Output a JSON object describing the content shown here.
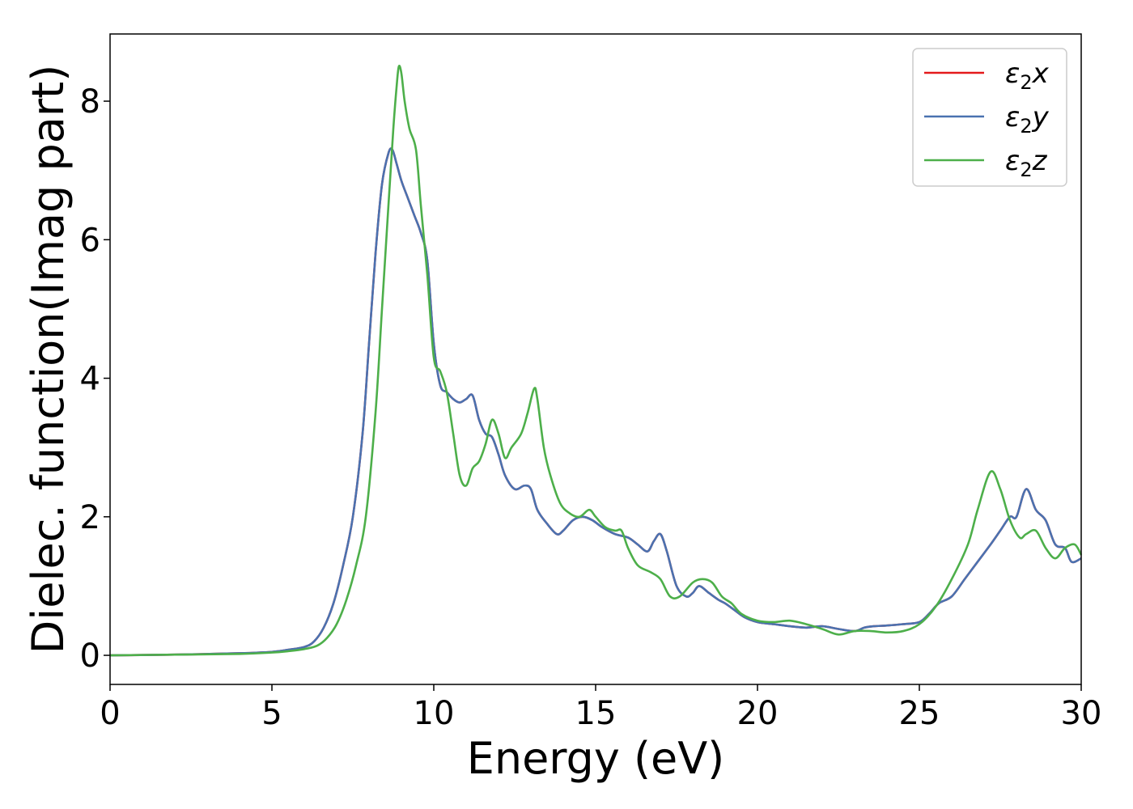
{
  "chart_data": {
    "type": "line",
    "xlabel": "Energy (eV)",
    "ylabel": "Dielec. function(Imag part)",
    "xlim": [
      0,
      30
    ],
    "ylim": [
      -0.42,
      8.97
    ],
    "xticks": [
      "0",
      "5",
      "10",
      "15",
      "20",
      "25",
      "30"
    ],
    "yticks": [
      "0",
      "2",
      "4",
      "6",
      "8"
    ],
    "grid": false,
    "legend_position": "top-right",
    "series": [
      {
        "name": "ε₂x",
        "legend_main": "ε",
        "legend_sub": "2",
        "legend_suffix": "x",
        "color": "#e41a1c",
        "x": [
          0,
          2,
          4,
          5,
          5.5,
          6,
          6.3,
          6.6,
          6.9,
          7.2,
          7.5,
          7.8,
          8.0,
          8.2,
          8.4,
          8.6,
          8.72,
          8.85,
          9.0,
          9.2,
          9.4,
          9.6,
          9.8,
          10.0,
          10.2,
          10.4,
          10.6,
          10.8,
          11.0,
          11.2,
          11.4,
          11.6,
          11.8,
          12.0,
          12.2,
          12.5,
          12.8,
          13.0,
          13.2,
          13.5,
          13.8,
          14.0,
          14.3,
          14.6,
          14.9,
          15.2,
          15.6,
          16.0,
          16.3,
          16.6,
          16.8,
          17.0,
          17.2,
          17.5,
          17.8,
          18.0,
          18.2,
          18.5,
          18.8,
          19.0,
          19.3,
          19.6,
          20.0,
          20.5,
          21.0,
          21.5,
          22.0,
          22.5,
          23.0,
          23.3,
          23.6,
          24.0,
          24.5,
          25.0,
          25.3,
          25.6,
          26.0,
          26.4,
          26.8,
          27.2,
          27.5,
          27.8,
          28.0,
          28.3,
          28.6,
          28.9,
          29.2,
          29.5,
          29.7,
          30.0
        ],
        "y": [
          0.0,
          0.01,
          0.03,
          0.05,
          0.08,
          0.12,
          0.2,
          0.4,
          0.75,
          1.3,
          2.0,
          3.2,
          4.5,
          5.8,
          6.8,
          7.25,
          7.3,
          7.1,
          6.85,
          6.6,
          6.35,
          6.1,
          5.7,
          4.5,
          3.9,
          3.8,
          3.7,
          3.65,
          3.7,
          3.75,
          3.4,
          3.2,
          3.15,
          2.9,
          2.6,
          2.4,
          2.45,
          2.4,
          2.1,
          1.9,
          1.75,
          1.8,
          1.95,
          2.0,
          1.95,
          1.85,
          1.75,
          1.7,
          1.6,
          1.5,
          1.65,
          1.75,
          1.5,
          1.0,
          0.85,
          0.9,
          1.0,
          0.9,
          0.8,
          0.75,
          0.65,
          0.55,
          0.48,
          0.45,
          0.42,
          0.4,
          0.42,
          0.38,
          0.35,
          0.4,
          0.42,
          0.43,
          0.45,
          0.48,
          0.6,
          0.75,
          0.85,
          1.1,
          1.35,
          1.6,
          1.8,
          2.0,
          2.0,
          2.4,
          2.1,
          1.95,
          1.6,
          1.55,
          1.35,
          1.4
        ]
      },
      {
        "name": "ε₂y",
        "legend_main": "ε",
        "legend_sub": "2",
        "legend_suffix": "y",
        "color": "#4a72b0",
        "x": [
          0,
          2,
          4,
          5,
          5.5,
          6,
          6.3,
          6.6,
          6.9,
          7.2,
          7.5,
          7.8,
          8.0,
          8.2,
          8.4,
          8.6,
          8.72,
          8.85,
          9.0,
          9.2,
          9.4,
          9.6,
          9.8,
          10.0,
          10.2,
          10.4,
          10.6,
          10.8,
          11.0,
          11.2,
          11.4,
          11.6,
          11.8,
          12.0,
          12.2,
          12.5,
          12.8,
          13.0,
          13.2,
          13.5,
          13.8,
          14.0,
          14.3,
          14.6,
          14.9,
          15.2,
          15.6,
          16.0,
          16.3,
          16.6,
          16.8,
          17.0,
          17.2,
          17.5,
          17.8,
          18.0,
          18.2,
          18.5,
          18.8,
          19.0,
          19.3,
          19.6,
          20.0,
          20.5,
          21.0,
          21.5,
          22.0,
          22.5,
          23.0,
          23.3,
          23.6,
          24.0,
          24.5,
          25.0,
          25.3,
          25.6,
          26.0,
          26.4,
          26.8,
          27.2,
          27.5,
          27.8,
          28.0,
          28.3,
          28.6,
          28.9,
          29.2,
          29.5,
          29.7,
          30.0
        ],
        "y": [
          0.0,
          0.01,
          0.03,
          0.05,
          0.08,
          0.12,
          0.2,
          0.4,
          0.75,
          1.3,
          2.0,
          3.2,
          4.5,
          5.8,
          6.8,
          7.25,
          7.3,
          7.1,
          6.85,
          6.6,
          6.35,
          6.1,
          5.7,
          4.5,
          3.9,
          3.8,
          3.7,
          3.65,
          3.7,
          3.75,
          3.4,
          3.2,
          3.15,
          2.9,
          2.6,
          2.4,
          2.45,
          2.4,
          2.1,
          1.9,
          1.75,
          1.8,
          1.95,
          2.0,
          1.95,
          1.85,
          1.75,
          1.7,
          1.6,
          1.5,
          1.65,
          1.75,
          1.5,
          1.0,
          0.85,
          0.9,
          1.0,
          0.9,
          0.8,
          0.75,
          0.65,
          0.55,
          0.48,
          0.45,
          0.42,
          0.4,
          0.42,
          0.38,
          0.35,
          0.4,
          0.42,
          0.43,
          0.45,
          0.48,
          0.6,
          0.75,
          0.85,
          1.1,
          1.35,
          1.6,
          1.8,
          2.0,
          2.0,
          2.4,
          2.1,
          1.95,
          1.6,
          1.55,
          1.35,
          1.4
        ]
      },
      {
        "name": "ε₂z",
        "legend_main": "ε",
        "legend_sub": "2",
        "legend_suffix": "z",
        "color": "#4daf4a",
        "x": [
          0,
          2,
          4,
          5,
          5.5,
          6,
          6.4,
          6.7,
          7.0,
          7.3,
          7.6,
          7.9,
          8.2,
          8.4,
          8.6,
          8.75,
          8.85,
          8.92,
          9.0,
          9.1,
          9.25,
          9.45,
          9.6,
          9.8,
          10.0,
          10.2,
          10.4,
          10.6,
          10.8,
          11.0,
          11.2,
          11.4,
          11.6,
          11.8,
          12.0,
          12.2,
          12.4,
          12.7,
          12.9,
          13.1,
          13.2,
          13.4,
          13.6,
          13.9,
          14.2,
          14.5,
          14.8,
          15.0,
          15.3,
          15.6,
          15.8,
          16.0,
          16.3,
          16.7,
          17.0,
          17.3,
          17.6,
          18.0,
          18.3,
          18.6,
          18.9,
          19.2,
          19.5,
          20.0,
          20.5,
          21.0,
          21.5,
          22.0,
          22.5,
          23.0,
          23.5,
          24.0,
          24.5,
          25.0,
          25.5,
          26.0,
          26.5,
          26.8,
          27.2,
          27.5,
          27.8,
          28.1,
          28.3,
          28.6,
          28.9,
          29.2,
          29.5,
          29.8,
          30.0
        ],
        "y": [
          0.0,
          0.01,
          0.02,
          0.04,
          0.06,
          0.09,
          0.14,
          0.25,
          0.45,
          0.8,
          1.3,
          2.0,
          3.5,
          5.0,
          6.5,
          7.6,
          8.2,
          8.5,
          8.4,
          8.0,
          7.6,
          7.3,
          6.5,
          5.5,
          4.3,
          4.1,
          3.8,
          3.2,
          2.6,
          2.45,
          2.7,
          2.8,
          3.05,
          3.4,
          3.2,
          2.85,
          3.0,
          3.2,
          3.5,
          3.85,
          3.7,
          3.0,
          2.6,
          2.2,
          2.05,
          2.0,
          2.1,
          2.0,
          1.85,
          1.8,
          1.8,
          1.55,
          1.3,
          1.2,
          1.1,
          0.85,
          0.85,
          1.05,
          1.1,
          1.05,
          0.85,
          0.75,
          0.6,
          0.5,
          0.48,
          0.5,
          0.45,
          0.38,
          0.3,
          0.35,
          0.35,
          0.33,
          0.35,
          0.45,
          0.7,
          1.1,
          1.6,
          2.1,
          2.65,
          2.4,
          1.95,
          1.7,
          1.75,
          1.8,
          1.55,
          1.4,
          1.55,
          1.6,
          1.45
        ]
      }
    ]
  }
}
